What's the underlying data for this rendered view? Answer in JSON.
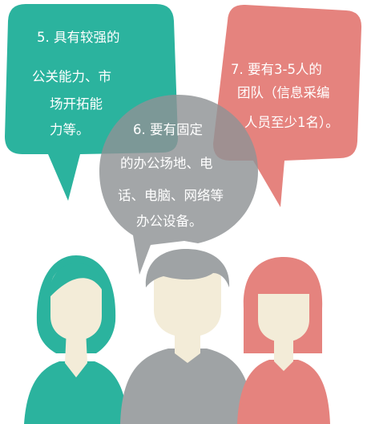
{
  "bubbles": {
    "left": {
      "lines": [
        "5.  具有较强的",
        "公关能力、市",
        "场开拓能",
        "力等。"
      ]
    },
    "middle": {
      "lines": [
        "6.  要有固定",
        "的办公场地、电",
        "话、电脑、网络等",
        "办公设备。"
      ]
    },
    "right": {
      "lines": [
        "7.  要有3-5人的",
        "团队（信息采编",
        "人员至少1名）。"
      ]
    }
  },
  "colors": {
    "teal": "#2bb39e",
    "teal_dark": "#1f9a87",
    "gray": "#9fa3a5",
    "gray_dark": "#7d8183",
    "salmon": "#e5837e",
    "salmon_dark": "#cf6c67",
    "skin": "#f3ecd8",
    "neck_shadow": "#e1d9c2"
  }
}
